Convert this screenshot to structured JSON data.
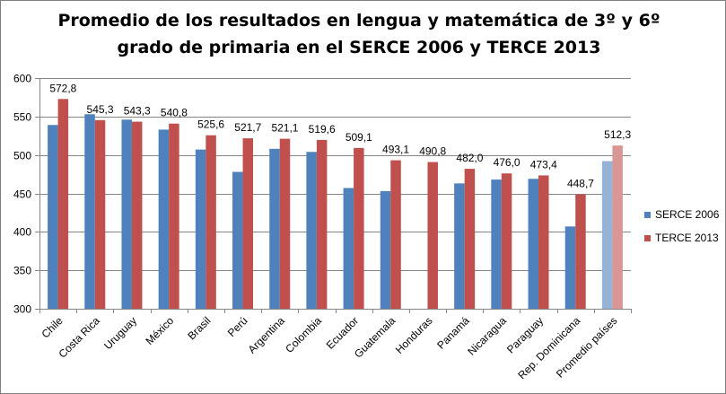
{
  "chart_data": {
    "type": "bar",
    "title": "Promedio de los resultados en lengua y matemática de 3º y 6º grado de primaria en el SERCE 2006 y TERCE 2013",
    "categories": [
      "Chile",
      "Costa Rica",
      "Uruguay",
      "México",
      "Brasil",
      "Perú",
      "Argentina",
      "Colombia",
      "Ecuador",
      "Guatemala",
      "Honduras",
      "Panamá",
      "Nicaragua",
      "Paraguay",
      "Rep. Dominicana",
      "Promedio países"
    ],
    "series": [
      {
        "name": "SERCE 2006",
        "color": "#4f81bd",
        "highlight_color": "#95b3d7",
        "values": [
          539,
          553,
          546,
          533,
          507,
          478,
          508,
          504,
          457,
          453,
          null,
          463,
          468,
          469,
          407,
          492
        ]
      },
      {
        "name": "TERCE 2013",
        "color": "#c0504d",
        "highlight_color": "#d99694",
        "values": [
          572.8,
          545.3,
          543.3,
          540.8,
          525.6,
          521.7,
          521.1,
          519.6,
          509.1,
          493.1,
          490.8,
          482.0,
          476.0,
          473.4,
          448.7,
          512.3
        ],
        "data_labels": [
          "572,8",
          "545,3",
          "543,3",
          "540,8",
          "525,6",
          "521,7",
          "521,1",
          "519,6",
          "509,1",
          "493,1",
          "490,8",
          "482,0",
          "476,0",
          "473,4",
          "448,7",
          "512,3"
        ]
      }
    ],
    "y_ticks": [
      "300",
      "350",
      "400",
      "450",
      "500",
      "550",
      "600"
    ],
    "ylim": [
      300,
      600
    ],
    "xlabel": "",
    "ylabel": "",
    "grid": true,
    "legend_position": "right",
    "grid_color": "#868686"
  }
}
